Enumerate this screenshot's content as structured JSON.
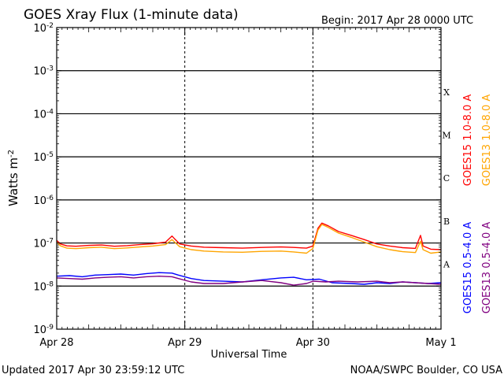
{
  "chart_data": {
    "type": "line",
    "title": "GOES Xray Flux (1-minute data)",
    "begin_label": "Begin:  2017 Apr 28 0000 UTC",
    "xlabel": "Universal Time",
    "ylabel_base": "Watts m",
    "ylabel_exp": "-2",
    "updated": "Updated 2017 Apr 30 23:59:12 UTC",
    "credit": "NOAA/SWPC Boulder, CO USA",
    "y_scale": "log",
    "ylim": [
      1e-09,
      0.01
    ],
    "x_range_days": [
      0,
      3
    ],
    "x_ticks": [
      {
        "day": 0,
        "label": "Apr 28"
      },
      {
        "day": 1,
        "label": "Apr 29"
      },
      {
        "day": 2,
        "label": "Apr 30"
      },
      {
        "day": 3,
        "label": "May 1"
      }
    ],
    "y_ticks": [
      {
        "value": 1e-09,
        "base": "10",
        "exp": "-9"
      },
      {
        "value": 1e-08,
        "base": "10",
        "exp": "-8"
      },
      {
        "value": 1e-07,
        "base": "10",
        "exp": "-7"
      },
      {
        "value": 1e-06,
        "base": "10",
        "exp": "-6"
      },
      {
        "value": 1e-05,
        "base": "10",
        "exp": "-5"
      },
      {
        "value": 0.0001,
        "base": "10",
        "exp": "-4"
      },
      {
        "value": 0.001,
        "base": "10",
        "exp": "-3"
      },
      {
        "value": 0.01,
        "base": "10",
        "exp": "-2"
      }
    ],
    "gridlines_y": [
      1e-08,
      1e-07,
      1e-06,
      1e-05,
      0.0001,
      0.001
    ],
    "flare_classes": [
      {
        "label": "A",
        "value": 3.2e-08
      },
      {
        "label": "B",
        "value": 3.2e-07
      },
      {
        "label": "C",
        "value": 3.2e-06
      },
      {
        "label": "M",
        "value": 3.2e-05
      },
      {
        "label": "X",
        "value": 0.00032
      }
    ],
    "series": [
      {
        "name": "GOES15 1.0-8.0 A",
        "color": "#ff0000",
        "points": [
          [
            0,
            1.15e-07
          ],
          [
            0.03,
            9.5e-08
          ],
          [
            0.08,
            8.6e-08
          ],
          [
            0.15,
            8.4e-08
          ],
          [
            0.25,
            8.8e-08
          ],
          [
            0.35,
            9e-08
          ],
          [
            0.45,
            8.4e-08
          ],
          [
            0.55,
            8.7e-08
          ],
          [
            0.65,
            9.2e-08
          ],
          [
            0.75,
            9.6e-08
          ],
          [
            0.85,
            1.05e-07
          ],
          [
            0.9,
            1.45e-07
          ],
          [
            0.92,
            1.25e-07
          ],
          [
            0.96,
            9.5e-08
          ],
          [
            1.05,
            8.5e-08
          ],
          [
            1.15,
            8e-08
          ],
          [
            1.3,
            7.8e-08
          ],
          [
            1.45,
            7.6e-08
          ],
          [
            1.6,
            7.9e-08
          ],
          [
            1.75,
            8.1e-08
          ],
          [
            1.85,
            7.9e-08
          ],
          [
            1.95,
            7.6e-08
          ],
          [
            2.0,
            8.5e-08
          ],
          [
            2.04,
            2.2e-07
          ],
          [
            2.07,
            2.9e-07
          ],
          [
            2.12,
            2.5e-07
          ],
          [
            2.2,
            1.85e-07
          ],
          [
            2.3,
            1.5e-07
          ],
          [
            2.4,
            1.2e-07
          ],
          [
            2.5,
            9.5e-08
          ],
          [
            2.6,
            8.5e-08
          ],
          [
            2.7,
            7.8e-08
          ],
          [
            2.8,
            7.5e-08
          ],
          [
            2.84,
            1.5e-07
          ],
          [
            2.86,
            8.5e-08
          ],
          [
            2.92,
            7.2e-08
          ],
          [
            3.0,
            7e-08
          ]
        ]
      },
      {
        "name": "GOES13 1.0-8.0 A",
        "color": "#ffa500",
        "points": [
          [
            0,
            1.05e-07
          ],
          [
            0.03,
            8.6e-08
          ],
          [
            0.08,
            7.6e-08
          ],
          [
            0.15,
            7.4e-08
          ],
          [
            0.25,
            7.8e-08
          ],
          [
            0.35,
            8e-08
          ],
          [
            0.45,
            7.4e-08
          ],
          [
            0.55,
            7.7e-08
          ],
          [
            0.65,
            8.1e-08
          ],
          [
            0.75,
            8.5e-08
          ],
          [
            0.85,
            9.2e-08
          ],
          [
            0.9,
            1.2e-07
          ],
          [
            0.92,
            1.05e-07
          ],
          [
            0.96,
            8.2e-08
          ],
          [
            1.05,
            7e-08
          ],
          [
            1.15,
            6.5e-08
          ],
          [
            1.3,
            6.2e-08
          ],
          [
            1.45,
            6.1e-08
          ],
          [
            1.6,
            6.4e-08
          ],
          [
            1.75,
            6.5e-08
          ],
          [
            1.85,
            6.2e-08
          ],
          [
            1.95,
            5.8e-08
          ],
          [
            2.0,
            7.5e-08
          ],
          [
            2.04,
            2e-07
          ],
          [
            2.07,
            2.7e-07
          ],
          [
            2.12,
            2.3e-07
          ],
          [
            2.2,
            1.7e-07
          ],
          [
            2.3,
            1.35e-07
          ],
          [
            2.4,
            1.05e-07
          ],
          [
            2.5,
            8.2e-08
          ],
          [
            2.6,
            7e-08
          ],
          [
            2.7,
            6.3e-08
          ],
          [
            2.8,
            6e-08
          ],
          [
            2.84,
            1.1e-07
          ],
          [
            2.86,
            7e-08
          ],
          [
            2.92,
            5.8e-08
          ],
          [
            3.0,
            6.2e-08
          ]
        ]
      },
      {
        "name": "GOES15 0.5-4.0 A",
        "color": "#0000ff",
        "points": [
          [
            0,
            1.7e-08
          ],
          [
            0.1,
            1.75e-08
          ],
          [
            0.2,
            1.65e-08
          ],
          [
            0.3,
            1.8e-08
          ],
          [
            0.4,
            1.85e-08
          ],
          [
            0.5,
            1.9e-08
          ],
          [
            0.6,
            1.8e-08
          ],
          [
            0.7,
            1.95e-08
          ],
          [
            0.8,
            2.05e-08
          ],
          [
            0.9,
            2e-08
          ],
          [
            0.95,
            1.8e-08
          ],
          [
            1.05,
            1.5e-08
          ],
          [
            1.15,
            1.35e-08
          ],
          [
            1.3,
            1.3e-08
          ],
          [
            1.45,
            1.25e-08
          ],
          [
            1.6,
            1.4e-08
          ],
          [
            1.75,
            1.55e-08
          ],
          [
            1.85,
            1.6e-08
          ],
          [
            1.95,
            1.4e-08
          ],
          [
            2.05,
            1.45e-08
          ],
          [
            2.15,
            1.2e-08
          ],
          [
            2.3,
            1.15e-08
          ],
          [
            2.4,
            1.1e-08
          ],
          [
            2.5,
            1.2e-08
          ],
          [
            2.6,
            1.15e-08
          ],
          [
            2.7,
            1.25e-08
          ],
          [
            2.8,
            1.2e-08
          ],
          [
            2.9,
            1.15e-08
          ],
          [
            3.0,
            1.2e-08
          ]
        ]
      },
      {
        "name": "GOES13 0.5-4.0 A",
        "color": "#800080",
        "points": [
          [
            0,
            1.55e-08
          ],
          [
            0.1,
            1.5e-08
          ],
          [
            0.2,
            1.45e-08
          ],
          [
            0.3,
            1.55e-08
          ],
          [
            0.4,
            1.6e-08
          ],
          [
            0.5,
            1.65e-08
          ],
          [
            0.6,
            1.55e-08
          ],
          [
            0.7,
            1.65e-08
          ],
          [
            0.8,
            1.7e-08
          ],
          [
            0.9,
            1.65e-08
          ],
          [
            0.95,
            1.5e-08
          ],
          [
            1.05,
            1.25e-08
          ],
          [
            1.15,
            1.15e-08
          ],
          [
            1.3,
            1.15e-08
          ],
          [
            1.45,
            1.25e-08
          ],
          [
            1.6,
            1.35e-08
          ],
          [
            1.75,
            1.2e-08
          ],
          [
            1.85,
            1.05e-08
          ],
          [
            1.95,
            1.15e-08
          ],
          [
            2.0,
            1.3e-08
          ],
          [
            2.1,
            1.25e-08
          ],
          [
            2.2,
            1.3e-08
          ],
          [
            2.35,
            1.25e-08
          ],
          [
            2.5,
            1.3e-08
          ],
          [
            2.6,
            1.2e-08
          ],
          [
            2.7,
            1.25e-08
          ],
          [
            2.8,
            1.2e-08
          ],
          [
            2.9,
            1.15e-08
          ],
          [
            3.0,
            1.1e-08
          ]
        ]
      }
    ]
  }
}
